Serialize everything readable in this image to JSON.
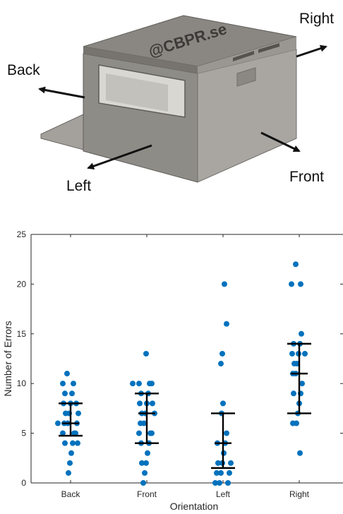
{
  "diagram": {
    "box_text": "@CBPR.se",
    "labels": {
      "back": "Back",
      "right": "Right",
      "left": "Left",
      "front": "Front"
    },
    "colors": {
      "box_top": "#8a8782",
      "box_front": "#8e8c87",
      "box_side": "#a9a6a1",
      "arrow": "#111111"
    }
  },
  "chart_data": {
    "type": "scatter",
    "title": "",
    "xlabel": "Orientation",
    "ylabel": "Number of Errors",
    "categories": [
      "Back",
      "Front",
      "Left",
      "Right"
    ],
    "ylim": [
      0,
      25
    ],
    "yticks": [
      0,
      5,
      10,
      15,
      20,
      25
    ],
    "grid": false,
    "marker_color": "#0072BD",
    "errorbar_color": "#000000",
    "series": [
      {
        "category": "Back",
        "values": [
          11,
          10,
          10,
          9,
          9,
          8,
          8,
          8,
          7,
          7,
          7,
          6,
          6,
          6,
          6,
          5,
          5,
          5,
          4,
          4,
          4,
          3,
          2,
          1
        ]
      },
      {
        "category": "Front",
        "values": [
          13,
          10,
          10,
          10,
          10,
          9,
          9,
          8,
          8,
          8,
          7,
          7,
          7,
          6,
          6,
          5,
          5,
          5,
          4,
          4,
          3,
          2,
          2,
          1,
          0
        ]
      },
      {
        "category": "Left",
        "values": [
          20,
          16,
          13,
          12,
          8,
          7,
          5,
          4,
          4,
          3,
          2,
          2,
          2,
          1,
          1,
          1,
          0,
          0,
          0
        ]
      },
      {
        "category": "Right",
        "values": [
          22,
          20,
          20,
          15,
          14,
          14,
          13,
          13,
          13,
          12,
          12,
          11,
          11,
          10,
          9,
          9,
          8,
          7,
          6,
          6,
          3
        ]
      }
    ],
    "errorbars": [
      {
        "category": "Back",
        "center": 6,
        "low": 4.75,
        "high": 8
      },
      {
        "category": "Front",
        "center": 7,
        "low": 4,
        "high": 9
      },
      {
        "category": "Left",
        "center": 4,
        "low": 1.5,
        "high": 7
      },
      {
        "category": "Right",
        "center": 11,
        "low": 7,
        "high": 14
      }
    ]
  }
}
